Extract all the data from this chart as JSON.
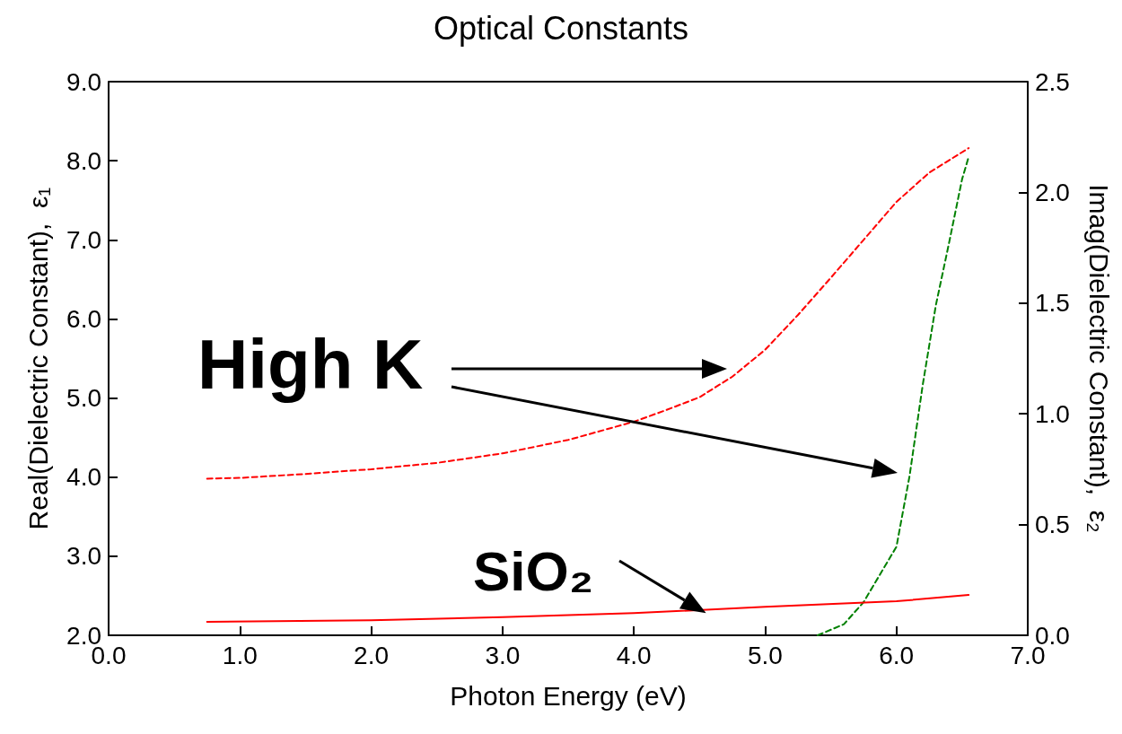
{
  "chart_data": {
    "type": "line",
    "title": "Optical Constants",
    "xlabel": "Photon Energy (eV)",
    "ylabel": "Real(Dielectric Constant),  ε₁",
    "y2label": "Imag(Dielectric Constant),  ε₂",
    "xlim": [
      0,
      7
    ],
    "xticks": [
      {
        "value": 0,
        "label": "0.0"
      },
      {
        "value": 1,
        "label": "1.0"
      },
      {
        "value": 2,
        "label": "2.0"
      },
      {
        "value": 3,
        "label": "3.0"
      },
      {
        "value": 4,
        "label": "4.0"
      },
      {
        "value": 5,
        "label": "5.0"
      },
      {
        "value": 6,
        "label": "6.0"
      },
      {
        "value": 7,
        "label": "7.0"
      }
    ],
    "ylim": [
      2,
      9
    ],
    "yticks": [
      {
        "value": 2,
        "label": "2.0"
      },
      {
        "value": 3,
        "label": "3.0"
      },
      {
        "value": 4,
        "label": "4.0"
      },
      {
        "value": 5,
        "label": "5.0"
      },
      {
        "value": 6,
        "label": "6.0"
      },
      {
        "value": 7,
        "label": "7.0"
      },
      {
        "value": 8,
        "label": "8.0"
      },
      {
        "value": 9,
        "label": "9.0"
      }
    ],
    "y2lim": [
      0,
      2.5
    ],
    "y2ticks": [
      {
        "value": 0,
        "label": "0.0"
      },
      0.5,
      {
        "value": 1,
        "label": "1.0"
      },
      1.5,
      {
        "value": 2,
        "label": "2.0"
      },
      2.5
    ],
    "grid": false,
    "marker": "none",
    "series": [
      {
        "color": "#ff0000",
        "line_style": "dashed",
        "x": [
          0.75,
          1.0,
          1.5,
          2.0,
          2.5,
          3.0,
          3.5,
          4.0,
          4.25,
          4.5,
          4.75,
          5.0,
          5.25,
          5.5,
          5.75,
          6.0,
          6.25,
          6.55
        ],
        "values": [
          3.98,
          3.99,
          4.04,
          4.1,
          4.18,
          4.3,
          4.47,
          4.7,
          4.85,
          5.01,
          5.27,
          5.61,
          6.05,
          6.52,
          7.0,
          7.48,
          7.85,
          8.16
        ]
      },
      {
        "color": "#008000",
        "line_style": "dashed",
        "axis": "y2",
        "x": [
          5.4,
          5.6,
          5.75,
          6.0,
          6.1,
          6.2,
          6.3,
          6.4,
          6.5,
          6.55
        ],
        "values": [
          0,
          0.05,
          0.15,
          0.4,
          0.72,
          1.13,
          1.49,
          1.77,
          2.06,
          2.16
        ]
      },
      {
        "color": "#ff0000",
        "line_style": "solid",
        "x": [
          0.75,
          2.0,
          3.0,
          4.0,
          5.0,
          6.0,
          6.55
        ],
        "values": [
          2.17,
          2.19,
          2.23,
          2.28,
          2.36,
          2.43,
          2.51
        ]
      }
    ],
    "annotations": [
      "High K",
      {
        "text": "SiO₂",
        "x": 4.55,
        "y": 2.28
      }
    ]
  }
}
